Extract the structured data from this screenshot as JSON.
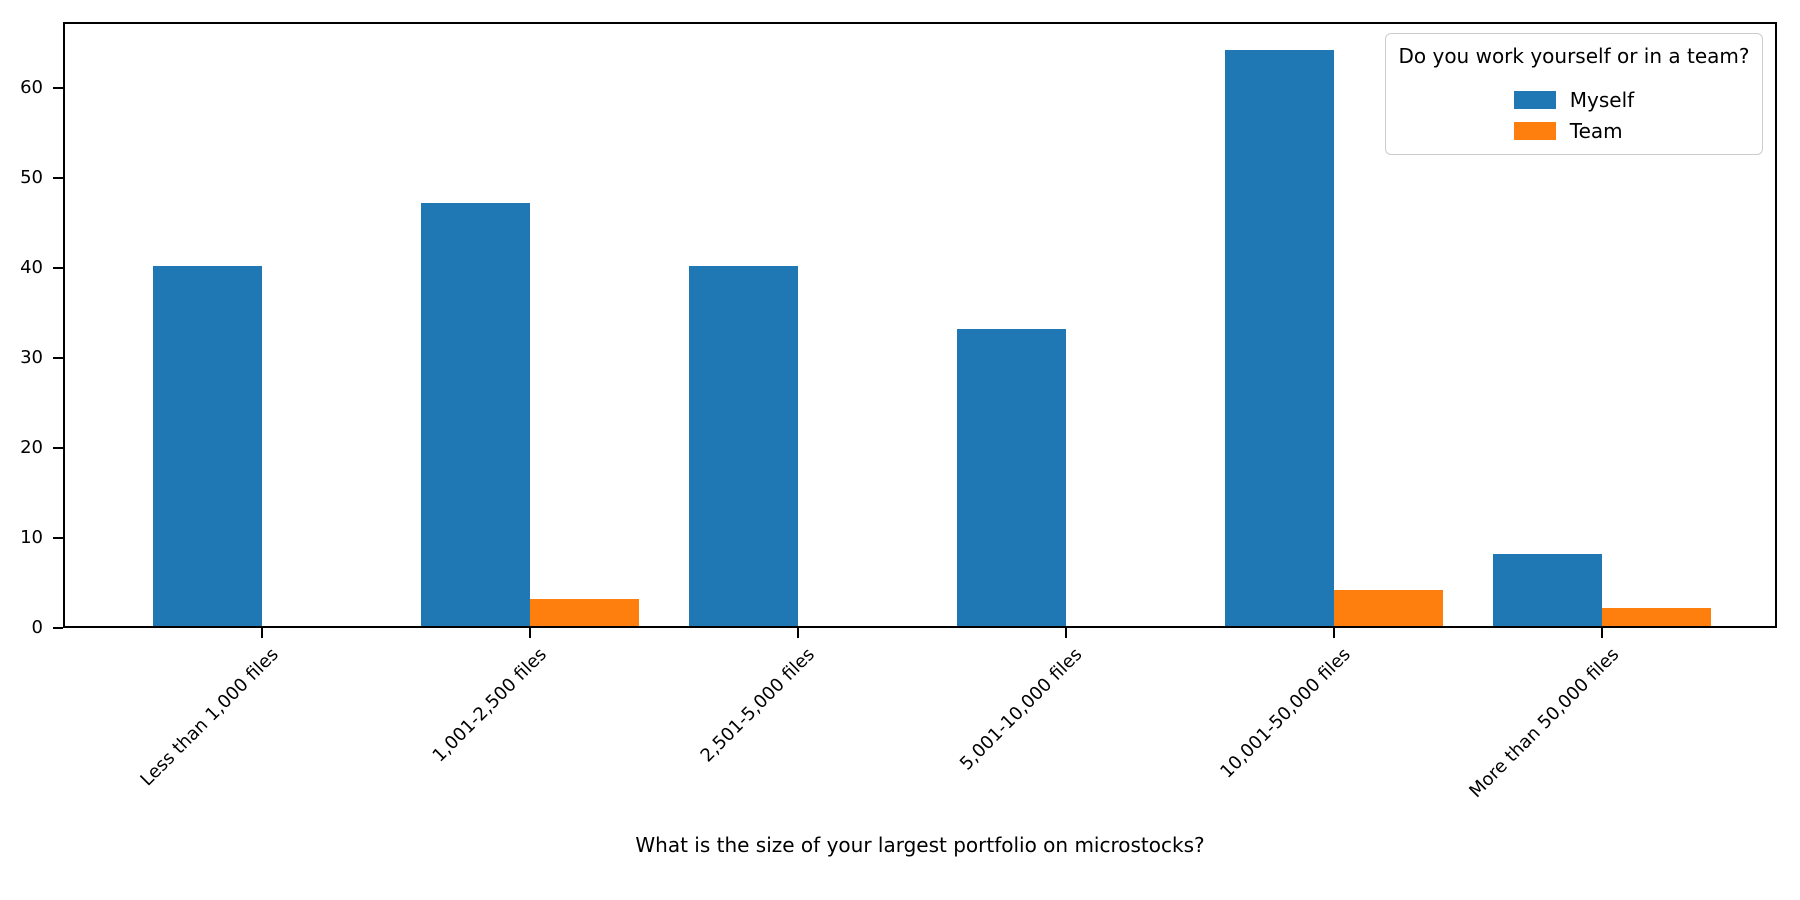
{
  "figure": {
    "background": "#ffffff",
    "axis_color": "#000000"
  },
  "chart_data": {
    "type": "bar",
    "title": "",
    "xlabel": "What is the size of your largest portfolio on microstocks?",
    "ylabel": "",
    "categories": [
      "Less than 1,000 files",
      "1,001-2,500 files",
      "2,501-5,000 files",
      "5,001-10,000 files",
      "10,001-50,000 files",
      "More than 50,000 files"
    ],
    "series": [
      {
        "name": "Myself",
        "color": "#1f77b4",
        "values": [
          40,
          47,
          40,
          33,
          64,
          8
        ]
      },
      {
        "name": "Team",
        "color": "#ff7f0e",
        "values": [
          0,
          3,
          0,
          0,
          4,
          2
        ]
      }
    ],
    "legend": {
      "title": "Do you work yourself or in a team?",
      "position": "upper-right",
      "entries": [
        "Myself",
        "Team"
      ]
    },
    "y_ticks": [
      0,
      10,
      20,
      30,
      40,
      50,
      60
    ],
    "ylim": [
      0,
      67.3
    ],
    "grid": false,
    "legend_border_color": "#cccccc"
  }
}
